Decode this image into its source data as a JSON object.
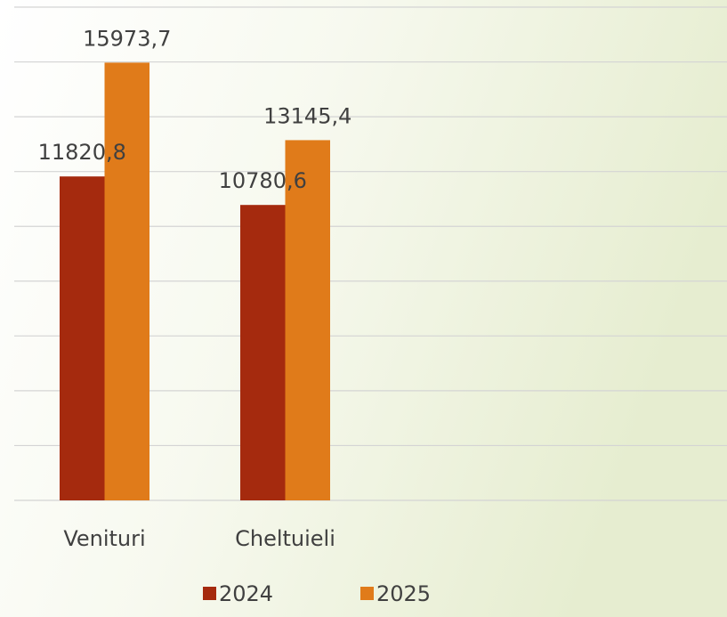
{
  "chart_data": {
    "type": "bar",
    "categories": [
      "Venituri",
      "Cheltuieli"
    ],
    "series": [
      {
        "name": "2024",
        "color": "#a52a0e",
        "values": [
          11820.8,
          10780.6
        ],
        "value_labels": [
          "11820,8",
          "10780,6"
        ]
      },
      {
        "name": "2025",
        "color": "#e07b1a",
        "values": [
          15973.7,
          13145.4
        ],
        "value_labels": [
          "15973,7",
          "13145,4"
        ]
      }
    ],
    "ylim": [
      0,
      18000
    ],
    "yticks": [
      0,
      2000,
      4000,
      6000,
      8000,
      10000,
      12000,
      14000,
      16000,
      18000
    ],
    "grid": true,
    "legend": "bottom"
  }
}
